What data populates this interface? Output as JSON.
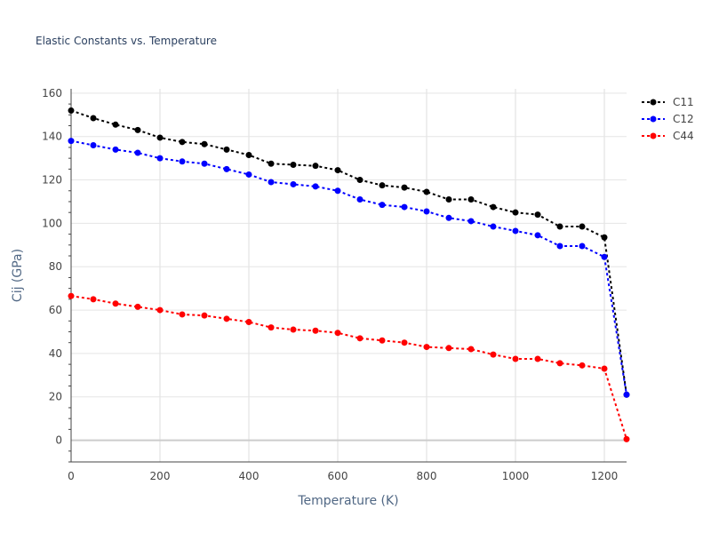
{
  "chart_data": {
    "type": "line",
    "title": "Elastic Constants vs. Temperature",
    "xlabel": "Temperature (K)",
    "ylabel": "Cij (GPa)",
    "xlim": [
      0,
      1250
    ],
    "ylim": [
      -10,
      162
    ],
    "xticks": [
      0,
      200,
      400,
      600,
      800,
      1000,
      1200
    ],
    "yticks": [
      0,
      20,
      40,
      60,
      80,
      100,
      120,
      140,
      160
    ],
    "grid": true,
    "legend_position": "top-right",
    "x": [
      0,
      50,
      100,
      150,
      200,
      250,
      300,
      350,
      400,
      450,
      500,
      550,
      600,
      650,
      700,
      750,
      800,
      850,
      900,
      950,
      1000,
      1050,
      1100,
      1150,
      1200,
      1250
    ],
    "series": [
      {
        "name": "C11",
        "color": "#000000",
        "values": [
          152,
          148.5,
          145.5,
          143,
          139.5,
          137.5,
          136.5,
          134,
          131.5,
          127.5,
          127,
          126.5,
          124.5,
          120,
          117.5,
          116.5,
          114.5,
          111,
          111,
          107.5,
          105,
          104,
          98.5,
          98.5,
          93.5,
          21
        ]
      },
      {
        "name": "C12",
        "color": "#0000ff",
        "values": [
          138,
          136,
          134,
          132.5,
          130,
          128.5,
          127.5,
          125,
          122.5,
          119,
          118,
          117,
          115,
          111,
          108.5,
          107.5,
          105.5,
          102.5,
          101,
          98.5,
          96.5,
          94.5,
          89.5,
          89.5,
          84.5,
          21
        ]
      },
      {
        "name": "C44",
        "color": "#ff0000",
        "values": [
          66.5,
          65,
          63,
          61.5,
          60,
          58,
          57.5,
          56,
          54.5,
          52,
          51,
          50.5,
          49.5,
          47,
          46,
          45,
          43,
          42.5,
          42,
          39.5,
          37.5,
          37.5,
          35.5,
          34.5,
          33,
          0.5
        ]
      }
    ]
  }
}
